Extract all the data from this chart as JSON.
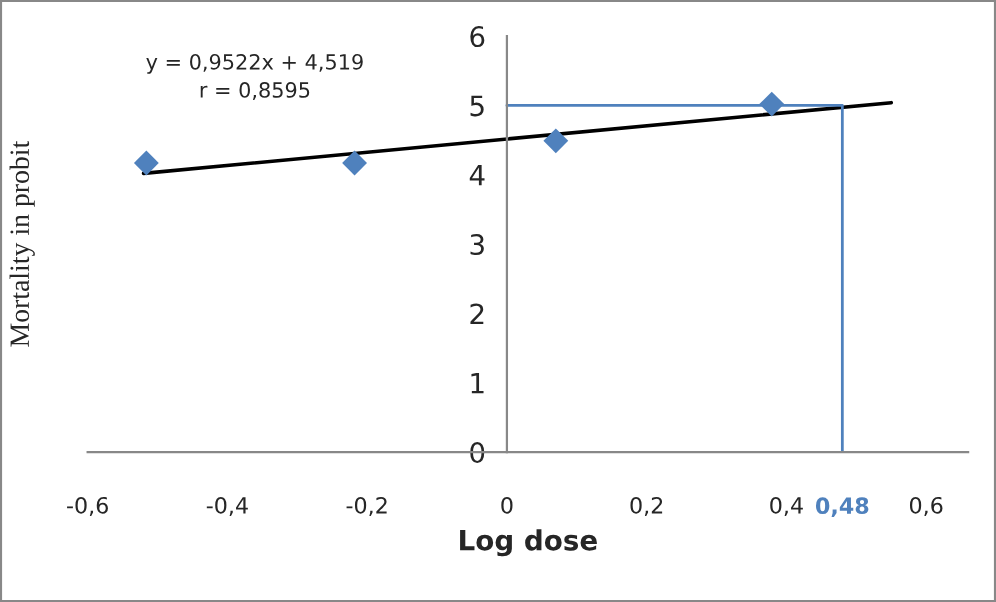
{
  "chart_data": {
    "type": "scatter",
    "xlabel": "Log dose",
    "ylabel": "Mortality in probit",
    "xlim": [
      -0.6,
      0.66
    ],
    "xticks": [
      {
        "value": -0.6,
        "label": "-0,6"
      },
      {
        "value": -0.4,
        "label": "-0,4"
      },
      {
        "value": -0.2,
        "label": "-0,2"
      },
      0,
      {
        "value": 0.2,
        "label": "0,2"
      },
      {
        "value": 0.4,
        "label": "0,4"
      },
      {
        "value": 0.6,
        "label": "0,6"
      }
    ],
    "ylim": [
      0,
      6
    ],
    "yticks": [
      0,
      1,
      2,
      3,
      4,
      5,
      6
    ],
    "grid": false,
    "series": [
      {
        "marker": "diamond",
        "color": "#4f81bd",
        "x": [
          -0.516,
          -0.218,
          0.07,
          0.379
        ],
        "values": [
          4.17,
          4.17,
          4.49,
          5.02
        ]
      },
      {
        "type": "line",
        "marker": "none",
        "color": "#000000",
        "x": [
          -0.52,
          0.55
        ],
        "values": [
          4.02,
          5.04
        ]
      },
      {
        "type": "line",
        "marker": "none",
        "color": "#4f81bd",
        "x": [
          0,
          0.48,
          0.48
        ],
        "values": [
          5,
          5,
          0
        ]
      }
    ],
    "annotations": [
      "y = 0,9522x + 4,519\nr = 0,8595",
      {
        "text": "0,48",
        "x": 0.48,
        "y": 0
      }
    ]
  }
}
